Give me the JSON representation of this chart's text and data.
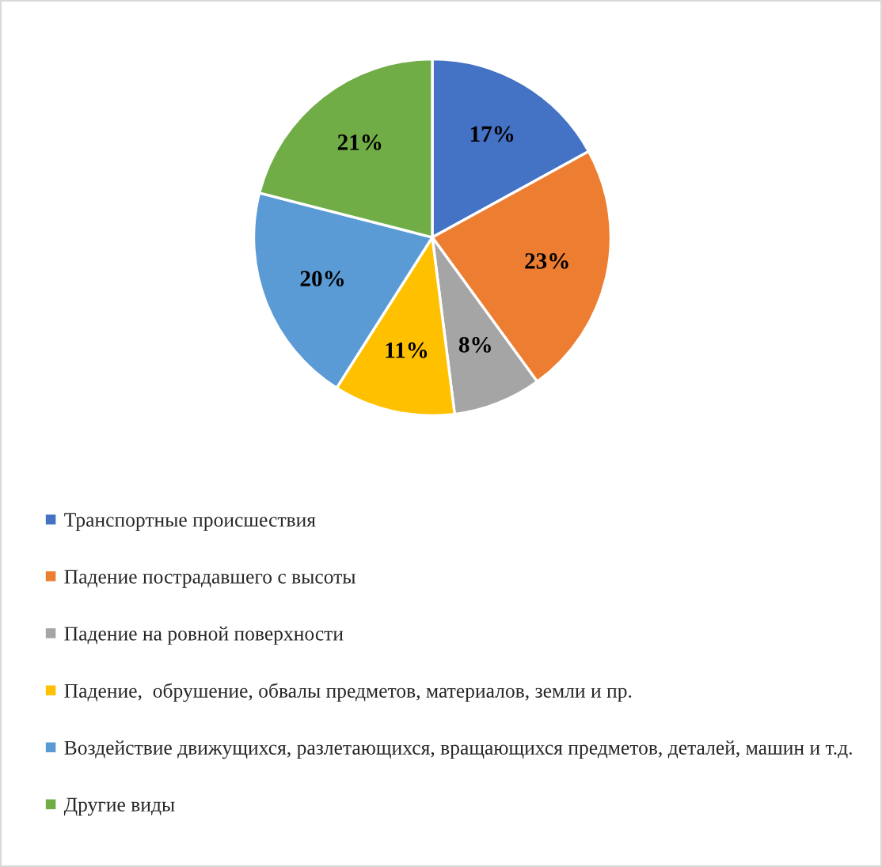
{
  "chart_data": {
    "type": "pie",
    "categories": [
      "Транспортные происшествия",
      "Падение пострадавшего с высоты",
      "Падение на ровной поверхности",
      "Падение,  обрушение, обвалы предметов, материалов, земли и пр.",
      "Воздействие движущихся, разлетающихся, вращающихся предметов, деталей, машин и т.д.",
      "Другие виды"
    ],
    "values": [
      17,
      23,
      8,
      11,
      20,
      21
    ],
    "colors": [
      "#4472c4",
      "#ed7d31",
      "#a5a5a5",
      "#ffc000",
      "#5b9bd5",
      "#70ad47"
    ],
    "value_labels": [
      "17%",
      "23%",
      "8%",
      "11%",
      "20%",
      "21%"
    ],
    "legend": "bottom"
  }
}
